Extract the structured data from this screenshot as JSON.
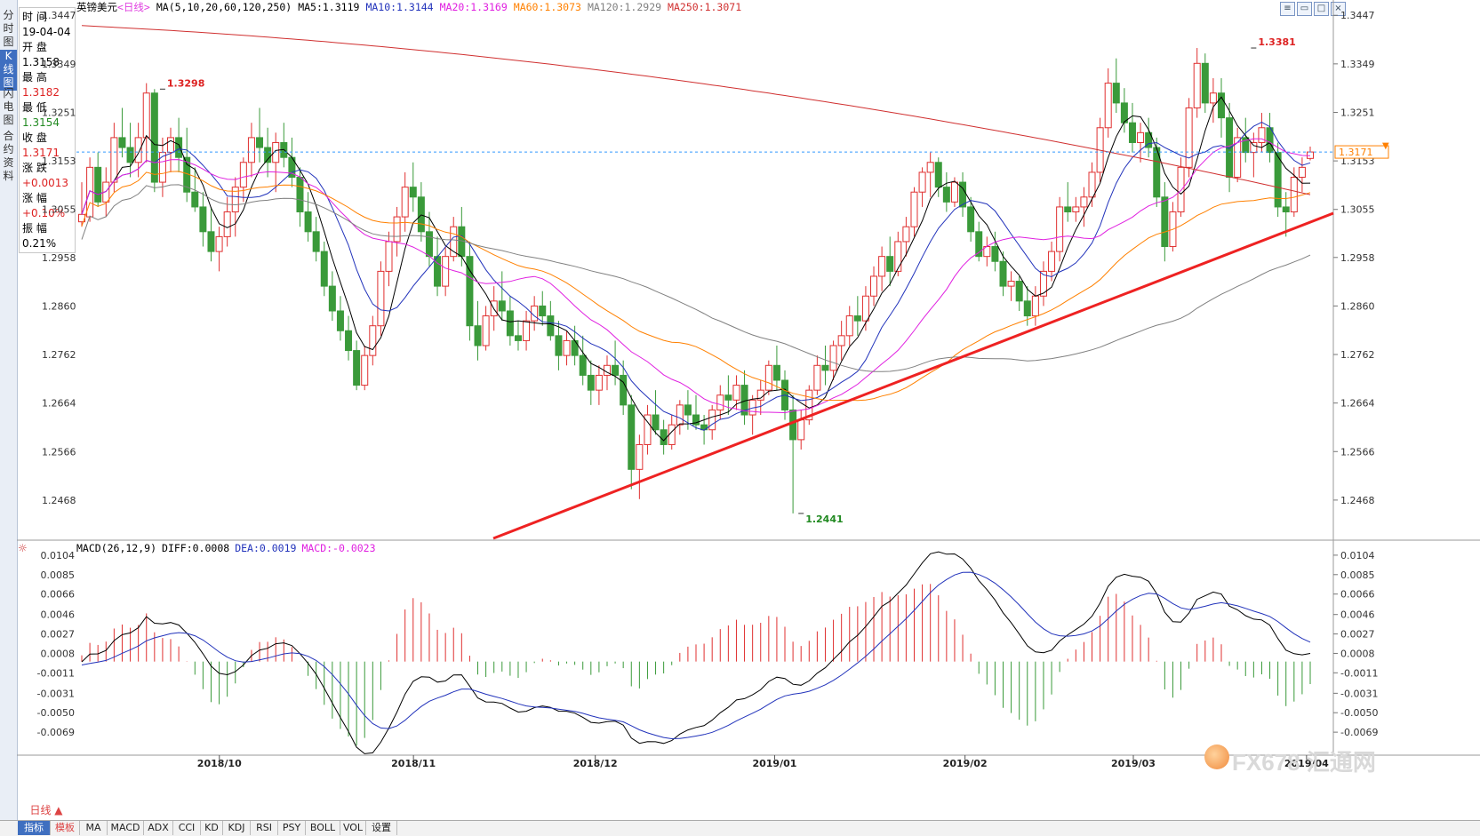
{
  "sidebar": {
    "tabs": [
      {
        "label": "分\n时\n图",
        "active": false
      },
      {
        "label": "K\n线\n图",
        "active": true
      },
      {
        "label": "闪\n电\n图",
        "active": false
      },
      {
        "label": "合\n约\n资\n料",
        "active": false
      }
    ]
  },
  "info_panel": {
    "time_label": "时 间",
    "time_value": "19-04-04",
    "open_label": "开 盘",
    "open_value": "1.3158",
    "high_label": "最 高",
    "high_value": "1.3182",
    "low_label": "最 低",
    "low_value": "1.3154",
    "close_label": "收 盘",
    "close_value": "1.3171",
    "change_label": "涨 跌",
    "change_value": "+0.0013",
    "pct_label": "涨 幅",
    "pct_value": "+0.10%",
    "amp_label": "振 幅",
    "amp_value": "0.21%"
  },
  "header": {
    "symbol": "英镑美元",
    "period": "<日线>",
    "ma_params": "MA(5,10,20,60,120,250)",
    "ma5": "MA5:1.3119",
    "ma10": "MA10:1.3144",
    "ma20": "MA20:1.3169",
    "ma60": "MA60:1.3073",
    "ma120": "MA120:1.2929",
    "ma250": "MA250:1.3071"
  },
  "macd_header": {
    "params": "MACD(26,12,9)",
    "diff": "DIFF:0.0008",
    "dea": "DEA:0.0019",
    "macd": "MACD:-0.0023"
  },
  "bottom_bar": {
    "period_label": "日线 ▲",
    "tabs": [
      "指标",
      "模板",
      "MA",
      "MACD",
      "ADX",
      "CCI",
      "KD",
      "KDJ",
      "RSI",
      "PSY",
      "BOLL",
      "VOL",
      "设置"
    ]
  },
  "watermark": "FX678 汇通网",
  "colors": {
    "up": "#e03030",
    "down": "#3a9a3a",
    "ma5": "#000000",
    "ma10": "#2233bb",
    "ma20": "#e020e0",
    "ma60": "#ff8000",
    "ma120": "#808080",
    "ma250": "#d03030",
    "trendline": "#ee2222",
    "diff": "#000000",
    "dea": "#2233bb"
  },
  "chart_data": [
    {
      "type": "candlestick",
      "title": "英镑美元<日线>",
      "x_tick_labels": [
        "2018/10",
        "2018/11",
        "2018/12",
        "2019/01",
        "2019/02",
        "2019/03",
        "2019/04"
      ],
      "y_tick_labels": [
        "1.3447",
        "1.3349",
        "1.3251",
        "1.3153",
        "1.3055",
        "1.2958",
        "1.2860",
        "1.2762",
        "1.2664",
        "1.2566",
        "1.2468"
      ],
      "ylim": [
        1.2405,
        1.346
      ],
      "current_price": "1.3171",
      "annotations": [
        {
          "text": "1.3298",
          "kind": "high"
        },
        {
          "text": "1.3381",
          "kind": "high"
        },
        {
          "text": "1.2441",
          "kind": "low"
        }
      ],
      "trendline": {
        "from": [
          "2018/12",
          1.238
        ],
        "to": [
          "2019/04",
          1.305
        ]
      },
      "ohlc": [
        [
          1.303,
          1.311,
          1.302,
          1.3045
        ],
        [
          1.304,
          1.316,
          1.303,
          1.314
        ],
        [
          1.314,
          1.317,
          1.306,
          1.307
        ],
        [
          1.307,
          1.314,
          1.304,
          1.311
        ],
        [
          1.311,
          1.323,
          1.309,
          1.32
        ],
        [
          1.32,
          1.326,
          1.316,
          1.318
        ],
        [
          1.318,
          1.323,
          1.312,
          1.315
        ],
        [
          1.315,
          1.323,
          1.312,
          1.32
        ],
        [
          1.32,
          1.331,
          1.315,
          1.329
        ],
        [
          1.329,
          1.3298,
          1.309,
          1.311
        ],
        [
          1.311,
          1.32,
          1.308,
          1.317
        ],
        [
          1.317,
          1.322,
          1.313,
          1.32
        ],
        [
          1.32,
          1.324,
          1.313,
          1.316
        ],
        [
          1.316,
          1.322,
          1.307,
          1.309
        ],
        [
          1.309,
          1.314,
          1.305,
          1.306
        ],
        [
          1.306,
          1.309,
          1.298,
          1.301
        ],
        [
          1.301,
          1.306,
          1.295,
          1.297
        ],
        [
          1.297,
          1.302,
          1.293,
          1.3
        ],
        [
          1.3,
          1.308,
          1.298,
          1.305
        ],
        [
          1.305,
          1.312,
          1.3,
          1.31
        ],
        [
          1.31,
          1.316,
          1.307,
          1.315
        ],
        [
          1.315,
          1.323,
          1.312,
          1.32
        ],
        [
          1.32,
          1.326,
          1.315,
          1.318
        ],
        [
          1.318,
          1.322,
          1.312,
          1.315
        ],
        [
          1.315,
          1.321,
          1.309,
          1.319
        ],
        [
          1.319,
          1.323,
          1.314,
          1.316
        ],
        [
          1.316,
          1.32,
          1.31,
          1.312
        ],
        [
          1.312,
          1.314,
          1.302,
          1.305
        ],
        [
          1.305,
          1.309,
          1.299,
          1.301
        ],
        [
          1.301,
          1.304,
          1.295,
          1.297
        ],
        [
          1.297,
          1.299,
          1.288,
          1.29
        ],
        [
          1.29,
          1.293,
          1.283,
          1.285
        ],
        [
          1.285,
          1.288,
          1.279,
          1.281
        ],
        [
          1.281,
          1.284,
          1.275,
          1.277
        ],
        [
          1.277,
          1.279,
          1.269,
          1.27
        ],
        [
          1.27,
          1.278,
          1.269,
          1.276
        ],
        [
          1.276,
          1.284,
          1.274,
          1.282
        ],
        [
          1.282,
          1.295,
          1.28,
          1.293
        ],
        [
          1.293,
          1.301,
          1.29,
          1.299
        ],
        [
          1.299,
          1.306,
          1.296,
          1.304
        ],
        [
          1.304,
          1.313,
          1.301,
          1.31
        ],
        [
          1.31,
          1.315,
          1.305,
          1.308
        ],
        [
          1.308,
          1.311,
          1.299,
          1.301
        ],
        [
          1.301,
          1.305,
          1.294,
          1.296
        ],
        [
          1.296,
          1.3,
          1.288,
          1.29
        ],
        [
          1.29,
          1.298,
          1.288,
          1.296
        ],
        [
          1.296,
          1.304,
          1.295,
          1.302
        ],
        [
          1.302,
          1.306,
          1.294,
          1.296
        ],
        [
          1.296,
          1.299,
          1.279,
          1.282
        ],
        [
          1.282,
          1.287,
          1.275,
          1.278
        ],
        [
          1.278,
          1.286,
          1.277,
          1.284
        ],
        [
          1.284,
          1.29,
          1.281,
          1.287
        ],
        [
          1.287,
          1.293,
          1.283,
          1.285
        ],
        [
          1.285,
          1.288,
          1.278,
          1.28
        ],
        [
          1.28,
          1.283,
          1.277,
          1.279
        ],
        [
          1.279,
          1.285,
          1.277,
          1.283
        ],
        [
          1.283,
          1.288,
          1.281,
          1.286
        ],
        [
          1.286,
          1.289,
          1.282,
          1.284
        ],
        [
          1.284,
          1.287,
          1.279,
          1.28
        ],
        [
          1.28,
          1.283,
          1.273,
          1.276
        ],
        [
          1.276,
          1.281,
          1.274,
          1.279
        ],
        [
          1.279,
          1.282,
          1.274,
          1.276
        ],
        [
          1.276,
          1.28,
          1.27,
          1.272
        ],
        [
          1.272,
          1.275,
          1.266,
          1.269
        ],
        [
          1.269,
          1.274,
          1.266,
          1.272
        ],
        [
          1.272,
          1.276,
          1.269,
          1.274
        ],
        [
          1.274,
          1.279,
          1.27,
          1.272
        ],
        [
          1.272,
          1.275,
          1.264,
          1.266
        ],
        [
          1.266,
          1.268,
          1.249,
          1.253
        ],
        [
          1.253,
          1.26,
          1.247,
          1.258
        ],
        [
          1.258,
          1.266,
          1.256,
          1.264
        ],
        [
          1.264,
          1.269,
          1.26,
          1.261
        ],
        [
          1.261,
          1.263,
          1.256,
          1.258
        ],
        [
          1.258,
          1.264,
          1.257,
          1.262
        ],
        [
          1.262,
          1.267,
          1.26,
          1.266
        ],
        [
          1.266,
          1.269,
          1.261,
          1.264
        ],
        [
          1.264,
          1.268,
          1.261,
          1.262
        ],
        [
          1.262,
          1.264,
          1.258,
          1.261
        ],
        [
          1.261,
          1.266,
          1.259,
          1.265
        ],
        [
          1.265,
          1.27,
          1.263,
          1.268
        ],
        [
          1.268,
          1.272,
          1.264,
          1.267
        ],
        [
          1.267,
          1.272,
          1.265,
          1.27
        ],
        [
          1.27,
          1.273,
          1.262,
          1.264
        ],
        [
          1.264,
          1.268,
          1.26,
          1.267
        ],
        [
          1.267,
          1.271,
          1.264,
          1.269
        ],
        [
          1.269,
          1.275,
          1.268,
          1.274
        ],
        [
          1.274,
          1.278,
          1.269,
          1.271
        ],
        [
          1.271,
          1.273,
          1.263,
          1.265
        ],
        [
          1.265,
          1.268,
          1.2441,
          1.259
        ],
        [
          1.259,
          1.265,
          1.257,
          1.263
        ],
        [
          1.263,
          1.27,
          1.262,
          1.269
        ],
        [
          1.269,
          1.276,
          1.268,
          1.274
        ],
        [
          1.274,
          1.278,
          1.27,
          1.273
        ],
        [
          1.273,
          1.279,
          1.271,
          1.278
        ],
        [
          1.278,
          1.283,
          1.275,
          1.28
        ],
        [
          1.28,
          1.286,
          1.278,
          1.284
        ],
        [
          1.284,
          1.288,
          1.28,
          1.283
        ],
        [
          1.283,
          1.29,
          1.281,
          1.288
        ],
        [
          1.288,
          1.294,
          1.286,
          1.292
        ],
        [
          1.292,
          1.298,
          1.289,
          1.296
        ],
        [
          1.296,
          1.3,
          1.29,
          1.293
        ],
        [
          1.293,
          1.301,
          1.292,
          1.299
        ],
        [
          1.299,
          1.304,
          1.296,
          1.302
        ],
        [
          1.302,
          1.31,
          1.3,
          1.309
        ],
        [
          1.309,
          1.314,
          1.306,
          1.313
        ],
        [
          1.313,
          1.317,
          1.308,
          1.315
        ],
        [
          1.315,
          1.316,
          1.308,
          1.31
        ],
        [
          1.31,
          1.313,
          1.305,
          1.307
        ],
        [
          1.307,
          1.312,
          1.306,
          1.311
        ],
        [
          1.311,
          1.313,
          1.304,
          1.306
        ],
        [
          1.306,
          1.308,
          1.299,
          1.301
        ],
        [
          1.301,
          1.303,
          1.295,
          1.296
        ],
        [
          1.296,
          1.3,
          1.294,
          1.298
        ],
        [
          1.298,
          1.301,
          1.293,
          1.295
        ],
        [
          1.295,
          1.297,
          1.288,
          1.29
        ],
        [
          1.29,
          1.293,
          1.287,
          1.291
        ],
        [
          1.291,
          1.292,
          1.285,
          1.287
        ],
        [
          1.287,
          1.29,
          1.282,
          1.284
        ],
        [
          1.284,
          1.29,
          1.282,
          1.288
        ],
        [
          1.288,
          1.295,
          1.286,
          1.293
        ],
        [
          1.293,
          1.299,
          1.291,
          1.297
        ],
        [
          1.297,
          1.308,
          1.295,
          1.306
        ],
        [
          1.306,
          1.311,
          1.303,
          1.305
        ],
        [
          1.305,
          1.308,
          1.303,
          1.306
        ],
        [
          1.306,
          1.31,
          1.302,
          1.308
        ],
        [
          1.308,
          1.315,
          1.306,
          1.313
        ],
        [
          1.313,
          1.324,
          1.311,
          1.322
        ],
        [
          1.322,
          1.334,
          1.32,
          1.331
        ],
        [
          1.331,
          1.336,
          1.325,
          1.327
        ],
        [
          1.327,
          1.33,
          1.321,
          1.323
        ],
        [
          1.323,
          1.327,
          1.317,
          1.319
        ],
        [
          1.319,
          1.323,
          1.315,
          1.321
        ],
        [
          1.321,
          1.324,
          1.316,
          1.318
        ],
        [
          1.318,
          1.32,
          1.306,
          1.308
        ],
        [
          1.308,
          1.311,
          1.295,
          1.298
        ],
        [
          1.298,
          1.307,
          1.297,
          1.305
        ],
        [
          1.305,
          1.316,
          1.304,
          1.314
        ],
        [
          1.314,
          1.328,
          1.312,
          1.326
        ],
        [
          1.326,
          1.3381,
          1.324,
          1.335
        ],
        [
          1.335,
          1.337,
          1.325,
          1.327
        ],
        [
          1.327,
          1.332,
          1.323,
          1.329
        ],
        [
          1.329,
          1.332,
          1.32,
          1.324
        ],
        [
          1.324,
          1.327,
          1.309,
          1.312
        ],
        [
          1.312,
          1.322,
          1.311,
          1.32
        ],
        [
          1.32,
          1.324,
          1.315,
          1.317
        ],
        [
          1.317,
          1.321,
          1.312,
          1.319
        ],
        [
          1.319,
          1.325,
          1.317,
          1.322
        ],
        [
          1.322,
          1.325,
          1.315,
          1.317
        ],
        [
          1.317,
          1.319,
          1.304,
          1.306
        ],
        [
          1.306,
          1.309,
          1.3,
          1.305
        ],
        [
          1.305,
          1.314,
          1.304,
          1.312
        ],
        [
          1.312,
          1.316,
          1.309,
          1.314
        ],
        [
          1.3158,
          1.3182,
          1.3154,
          1.3171
        ]
      ],
      "ma5_end": 1.3119,
      "ma10_end": 1.3144,
      "ma20_end": 1.3169,
      "ma60_end": 1.3073,
      "ma120_end": 1.2929,
      "ma250_end": 1.3071
    },
    {
      "type": "line+bar",
      "title": "MACD(26,12,9)",
      "y_tick_labels": [
        "0.0104",
        "0.0085",
        "0.0066",
        "0.0046",
        "0.0027",
        "0.0008",
        "-0.0011",
        "-0.0031",
        "-0.0050",
        "-0.0069"
      ],
      "ylim": [
        -0.0088,
        0.011
      ],
      "series": [
        {
          "name": "DIFF",
          "last": 0.0008
        },
        {
          "name": "DEA",
          "last": 0.0019
        },
        {
          "name": "MACD",
          "last": -0.0023
        }
      ]
    }
  ]
}
